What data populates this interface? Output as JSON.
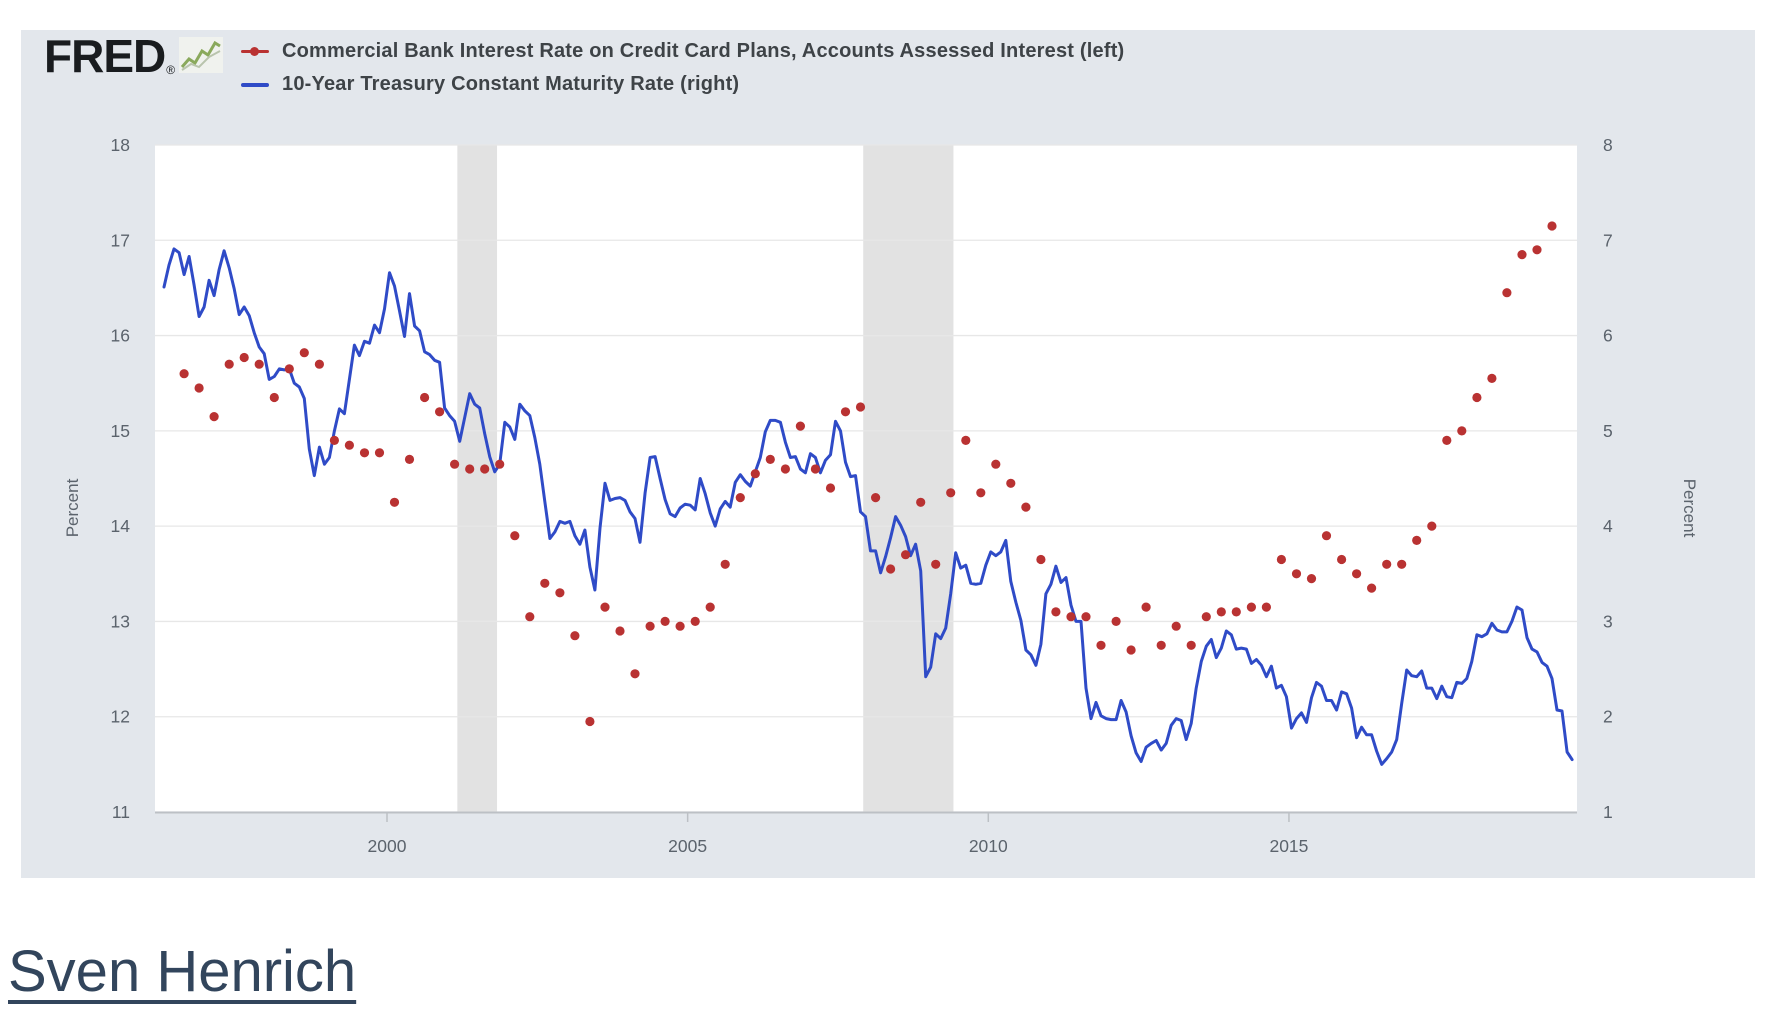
{
  "header": {
    "logo_text": "FRED",
    "registered": "®"
  },
  "legend": {
    "items": [
      {
        "label": "Commercial Bank Interest Rate on Credit Card Plans, Accounts Assessed Interest (left)",
        "color": "#b93232",
        "marker": "line-dot"
      },
      {
        "label": "10-Year Treasury Constant Maturity Rate (right)",
        "color": "#2f4bc7",
        "marker": "line"
      }
    ]
  },
  "axes": {
    "left_title": "Percent",
    "right_title": "Percent",
    "left_ticks": [
      18,
      17,
      16,
      15,
      14,
      13,
      12,
      11
    ],
    "right_ticks": [
      8,
      7,
      6,
      5,
      4,
      3,
      2,
      1
    ],
    "x_ticks": [
      2000,
      2005,
      2010,
      2015
    ]
  },
  "footer_link": {
    "text": "Sven Henrich"
  },
  "colors": {
    "card_background": "#e3e7ec",
    "plot_background": "#ffffff",
    "gridline": "#e7e7e7",
    "recession_band": "#e2e2e2",
    "axis_line": "#bcc0c5",
    "tick_text": "#5b636c",
    "red_series": "#b93232",
    "blue_series": "#2f4bc7",
    "link_text": "#32455c"
  },
  "chart_data": {
    "type": "line",
    "title": "",
    "xlabel": "",
    "ylabel_left": "Percent",
    "ylabel_right": "Percent",
    "x_range": [
      1996.14,
      2019.75
    ],
    "left_ylim": [
      11,
      18
    ],
    "right_ylim": [
      1,
      8
    ],
    "grid": true,
    "legend_position": "top-left",
    "recession_bands": [
      [
        2001.17,
        2001.83
      ],
      [
        2007.92,
        2009.42
      ]
    ],
    "series": [
      {
        "name": "Commercial Bank Interest Rate on Credit Card Plans, Accounts Assessed Interest",
        "axis": "left",
        "style": "scatter",
        "frequency": "quarterly",
        "color": "#b93232",
        "points": [
          [
            1996.625,
            15.6
          ],
          [
            1996.875,
            15.45
          ],
          [
            1997.125,
            15.15
          ],
          [
            1997.375,
            15.7
          ],
          [
            1997.625,
            15.77
          ],
          [
            1997.875,
            15.7
          ],
          [
            1998.125,
            15.35
          ],
          [
            1998.375,
            15.65
          ],
          [
            1998.625,
            15.82
          ],
          [
            1998.875,
            15.7
          ],
          [
            1999.125,
            14.9
          ],
          [
            1999.375,
            14.85
          ],
          [
            1999.625,
            14.77
          ],
          [
            1999.875,
            14.77
          ],
          [
            2000.125,
            14.25
          ],
          [
            2000.375,
            14.7
          ],
          [
            2000.625,
            15.35
          ],
          [
            2000.875,
            15.2
          ],
          [
            2001.125,
            14.65
          ],
          [
            2001.375,
            14.6
          ],
          [
            2001.625,
            14.6
          ],
          [
            2001.875,
            14.65
          ],
          [
            2002.125,
            13.9
          ],
          [
            2002.375,
            13.05
          ],
          [
            2002.625,
            13.4
          ],
          [
            2002.875,
            13.3
          ],
          [
            2003.125,
            12.85
          ],
          [
            2003.375,
            11.95
          ],
          [
            2003.625,
            13.15
          ],
          [
            2003.875,
            12.9
          ],
          [
            2004.125,
            12.45
          ],
          [
            2004.375,
            12.95
          ],
          [
            2004.625,
            13.0
          ],
          [
            2004.875,
            12.95
          ],
          [
            2005.125,
            13.0
          ],
          [
            2005.375,
            13.15
          ],
          [
            2005.625,
            13.6
          ],
          [
            2005.875,
            14.3
          ],
          [
            2006.125,
            14.55
          ],
          [
            2006.375,
            14.7
          ],
          [
            2006.625,
            14.6
          ],
          [
            2006.875,
            15.05
          ],
          [
            2007.125,
            14.6
          ],
          [
            2007.375,
            14.4
          ],
          [
            2007.625,
            15.2
          ],
          [
            2007.875,
            15.25
          ],
          [
            2008.125,
            14.3
          ],
          [
            2008.375,
            13.55
          ],
          [
            2008.625,
            13.7
          ],
          [
            2008.875,
            14.25
          ],
          [
            2009.125,
            13.6
          ],
          [
            2009.375,
            14.35
          ],
          [
            2009.625,
            14.9
          ],
          [
            2009.875,
            14.35
          ],
          [
            2010.125,
            14.65
          ],
          [
            2010.375,
            14.45
          ],
          [
            2010.625,
            14.2
          ],
          [
            2010.875,
            13.65
          ],
          [
            2011.125,
            13.1
          ],
          [
            2011.375,
            13.05
          ],
          [
            2011.625,
            13.05
          ],
          [
            2011.875,
            12.75
          ],
          [
            2012.125,
            13.0
          ],
          [
            2012.375,
            12.7
          ],
          [
            2012.625,
            13.15
          ],
          [
            2012.875,
            12.75
          ],
          [
            2013.125,
            12.95
          ],
          [
            2013.375,
            12.75
          ],
          [
            2013.625,
            13.05
          ],
          [
            2013.875,
            13.1
          ],
          [
            2014.125,
            13.1
          ],
          [
            2014.375,
            13.15
          ],
          [
            2014.625,
            13.15
          ],
          [
            2014.875,
            13.65
          ],
          [
            2015.125,
            13.5
          ],
          [
            2015.375,
            13.45
          ],
          [
            2015.625,
            13.9
          ],
          [
            2015.875,
            13.65
          ],
          [
            2016.125,
            13.5
          ],
          [
            2016.375,
            13.35
          ],
          [
            2016.625,
            13.6
          ],
          [
            2016.875,
            13.6
          ],
          [
            2017.125,
            13.85
          ],
          [
            2017.375,
            14.0
          ],
          [
            2017.625,
            14.9
          ],
          [
            2017.875,
            15.0
          ],
          [
            2018.125,
            15.35
          ],
          [
            2018.375,
            15.55
          ],
          [
            2018.625,
            16.45
          ],
          [
            2018.875,
            16.85
          ],
          [
            2019.125,
            16.9
          ],
          [
            2019.375,
            17.15
          ]
        ]
      },
      {
        "name": "10-Year Treasury Constant Maturity Rate",
        "axis": "right",
        "style": "line",
        "frequency": "monthly",
        "color": "#2f4bc7",
        "monthly": {
          "start_year": 1996,
          "start_month": 4,
          "values": [
            6.51,
            6.74,
            6.91,
            6.87,
            6.64,
            6.83,
            6.53,
            6.2,
            6.3,
            6.58,
            6.42,
            6.69,
            6.89,
            6.71,
            6.49,
            6.22,
            6.3,
            6.21,
            6.03,
            5.88,
            5.81,
            5.54,
            5.57,
            5.65,
            5.64,
            5.65,
            5.5,
            5.46,
            5.34,
            4.81,
            4.53,
            4.83,
            4.65,
            4.72,
            5.0,
            5.23,
            5.18,
            5.54,
            5.9,
            5.79,
            5.94,
            5.92,
            6.11,
            6.03,
            6.28,
            6.66,
            6.52,
            6.26,
            5.99,
            6.44,
            6.1,
            6.05,
            5.83,
            5.8,
            5.74,
            5.72,
            5.24,
            5.16,
            5.1,
            4.89,
            5.14,
            5.39,
            5.28,
            5.24,
            4.97,
            4.73,
            4.57,
            4.65,
            5.09,
            5.04,
            4.91,
            5.28,
            5.21,
            5.16,
            4.93,
            4.65,
            4.26,
            3.87,
            3.94,
            4.05,
            4.03,
            4.05,
            3.9,
            3.81,
            3.96,
            3.57,
            3.33,
            3.98,
            4.45,
            4.27,
            4.29,
            4.3,
            4.27,
            4.15,
            4.08,
            3.83,
            4.35,
            4.72,
            4.73,
            4.5,
            4.28,
            4.13,
            4.1,
            4.19,
            4.23,
            4.22,
            4.17,
            4.5,
            4.34,
            4.14,
            4.0,
            4.18,
            4.26,
            4.2,
            4.46,
            4.54,
            4.47,
            4.42,
            4.57,
            4.72,
            4.99,
            5.11,
            5.11,
            5.09,
            4.88,
            4.72,
            4.73,
            4.6,
            4.56,
            4.76,
            4.72,
            4.56,
            4.69,
            4.75,
            5.1,
            5.0,
            4.67,
            4.52,
            4.53,
            4.15,
            4.1,
            3.74,
            3.74,
            3.51,
            3.68,
            3.88,
            4.1,
            4.01,
            3.89,
            3.69,
            3.81,
            3.53,
            2.42,
            2.52,
            2.87,
            2.82,
            2.93,
            3.29,
            3.72,
            3.56,
            3.59,
            3.4,
            3.39,
            3.4,
            3.59,
            3.73,
            3.69,
            3.73,
            3.85,
            3.42,
            3.2,
            3.01,
            2.7,
            2.65,
            2.54,
            2.76,
            3.29,
            3.39,
            3.58,
            3.41,
            3.46,
            3.17,
            3.0,
            3.0,
            2.3,
            1.98,
            2.15,
            2.01,
            1.98,
            1.97,
            1.97,
            2.17,
            2.05,
            1.8,
            1.62,
            1.53,
            1.68,
            1.72,
            1.75,
            1.65,
            1.72,
            1.91,
            1.98,
            1.96,
            1.76,
            1.93,
            2.3,
            2.58,
            2.74,
            2.81,
            2.62,
            2.72,
            2.9,
            2.86,
            2.71,
            2.72,
            2.71,
            2.56,
            2.6,
            2.54,
            2.42,
            2.53,
            2.3,
            2.33,
            2.21,
            1.88,
            1.98,
            2.04,
            1.94,
            2.2,
            2.36,
            2.32,
            2.17,
            2.17,
            2.07,
            2.26,
            2.24,
            2.09,
            1.78,
            1.89,
            1.81,
            1.81,
            1.64,
            1.5,
            1.56,
            1.63,
            1.76,
            2.14,
            2.49,
            2.43,
            2.42,
            2.48,
            2.3,
            2.3,
            2.19,
            2.32,
            2.21,
            2.2,
            2.36,
            2.35,
            2.4,
            2.58,
            2.86,
            2.84,
            2.87,
            2.98,
            2.91,
            2.89,
            2.89,
            3.0,
            3.15,
            3.12,
            2.83,
            2.71,
            2.68,
            2.57,
            2.53,
            2.4,
            2.07,
            2.06,
            1.63,
            1.55
          ]
        }
      }
    ]
  }
}
